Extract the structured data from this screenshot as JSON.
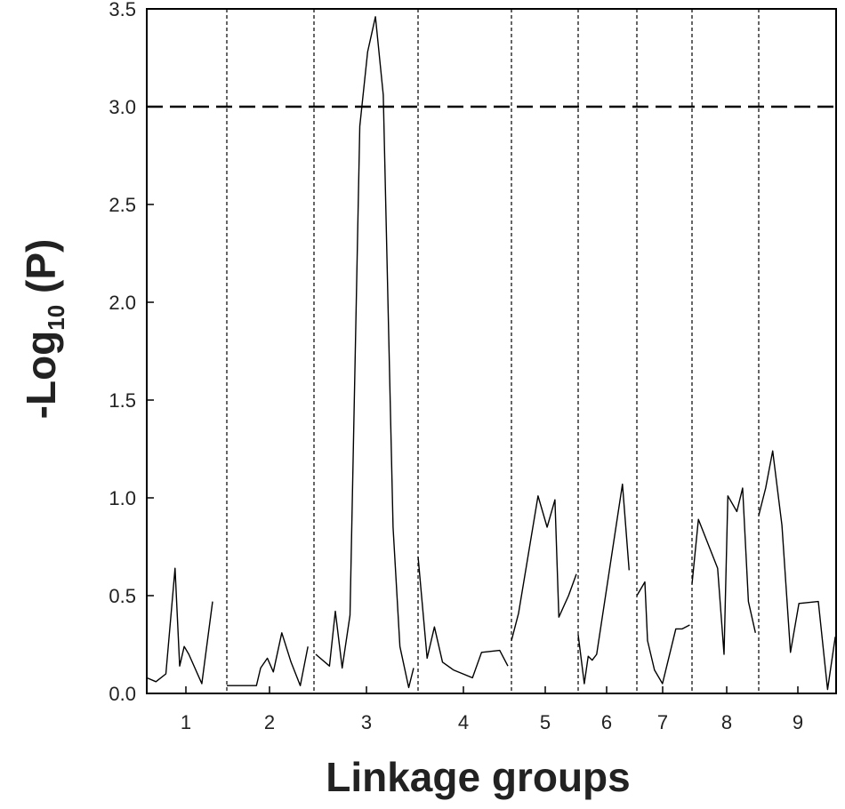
{
  "chart_data": {
    "type": "line",
    "title": "",
    "xlabel": "Linkage groups",
    "ylabel_main": "-Log",
    "ylabel_sub": "10",
    "ylabel_suffix": " (P)",
    "ylim": [
      0,
      3.5
    ],
    "yticks": [
      "0.0",
      "0.5",
      "1.0",
      "1.5",
      "2.0",
      "2.5",
      "3.0",
      "3.5"
    ],
    "threshold": 3.0,
    "grid": false,
    "groups": [
      {
        "label": "1",
        "x": [
          0.0,
          0.12,
          0.25,
          0.37,
          0.43,
          0.49,
          0.55,
          0.72,
          0.86
        ],
        "y": [
          0.08,
          0.06,
          0.1,
          0.64,
          0.14,
          0.24,
          0.2,
          0.05,
          0.47
        ]
      },
      {
        "label": "2",
        "x": [
          0.0,
          0.35,
          0.4,
          0.48,
          0.55,
          0.65,
          0.76,
          0.87,
          0.96
        ],
        "y": [
          0.04,
          0.04,
          0.13,
          0.18,
          0.11,
          0.31,
          0.16,
          0.04,
          0.24
        ]
      },
      {
        "label": "3",
        "x": [
          0.0,
          0.14,
          0.2,
          0.27,
          0.35,
          0.45,
          0.53,
          0.61,
          0.69,
          0.79,
          0.86,
          0.95,
          1.0
        ],
        "y": [
          0.2,
          0.14,
          0.42,
          0.13,
          0.4,
          2.9,
          3.28,
          3.46,
          3.06,
          0.85,
          0.24,
          0.03,
          0.13
        ]
      },
      {
        "label": "4",
        "x": [
          0.0,
          0.1,
          0.18,
          0.27,
          0.39,
          0.6,
          0.7,
          0.9,
          0.99
        ],
        "y": [
          0.7,
          0.18,
          0.34,
          0.16,
          0.12,
          0.08,
          0.21,
          0.22,
          0.14
        ]
      },
      {
        "label": "5",
        "x": [
          0.0,
          0.11,
          0.41,
          0.55,
          0.67,
          0.73,
          0.88,
          1.0
        ],
        "y": [
          0.27,
          0.41,
          1.01,
          0.85,
          0.99,
          0.39,
          0.5,
          0.61
        ]
      },
      {
        "label": "6",
        "x": [
          0.0,
          0.11,
          0.18,
          0.25,
          0.33,
          0.79,
          0.91
        ],
        "y": [
          0.3,
          0.05,
          0.19,
          0.17,
          0.2,
          1.07,
          0.63
        ]
      },
      {
        "label": "7",
        "x": [
          0.0,
          0.15,
          0.2,
          0.33,
          0.48,
          0.73,
          0.85,
          0.99
        ],
        "y": [
          0.5,
          0.57,
          0.27,
          0.12,
          0.05,
          0.33,
          0.33,
          0.35
        ]
      },
      {
        "label": "8",
        "x": [
          0.0,
          0.1,
          0.4,
          0.5,
          0.56,
          0.7,
          0.79,
          0.88,
          0.99
        ],
        "y": [
          0.56,
          0.89,
          0.64,
          0.2,
          1.01,
          0.93,
          1.05,
          0.47,
          0.31
        ]
      },
      {
        "label": "9",
        "x": [
          0.0,
          0.09,
          0.18,
          0.3,
          0.41,
          0.52,
          0.77,
          0.89,
          0.99
        ],
        "y": [
          0.91,
          1.05,
          1.24,
          0.86,
          0.21,
          0.46,
          0.47,
          0.02,
          0.29
        ]
      }
    ]
  }
}
